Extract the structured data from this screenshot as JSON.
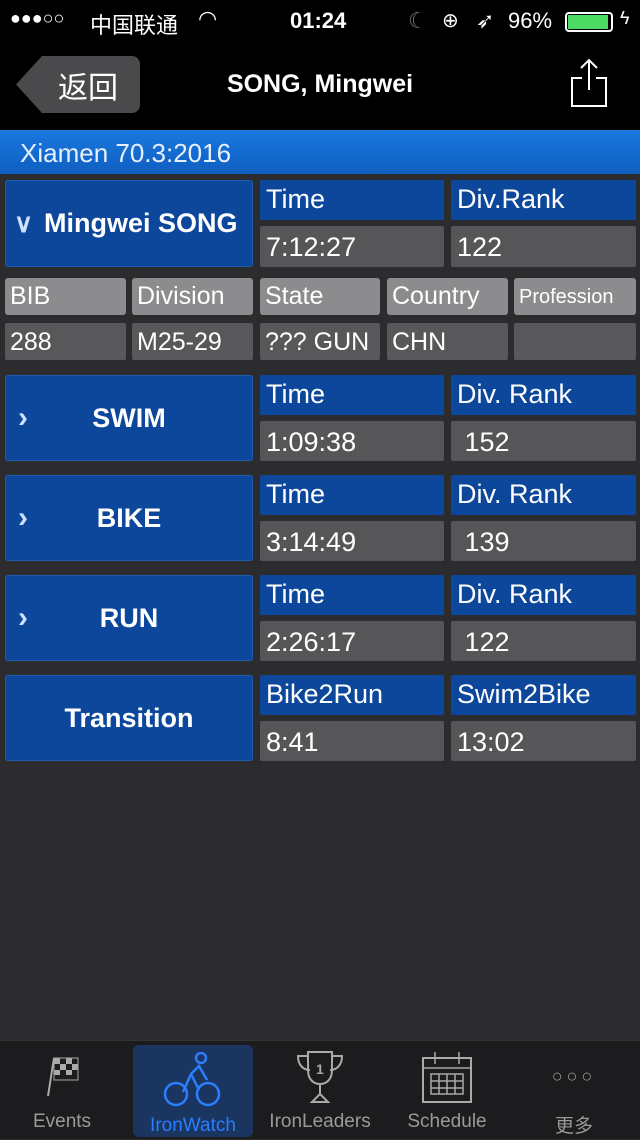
{
  "status": {
    "signal": "●●●○○",
    "carrier": "中国联通",
    "time": "01:24",
    "battery": "96%",
    "battery_level": 96
  },
  "nav": {
    "back": "返回",
    "title": "SONG, Mingwei",
    "share_icon": "share-icon"
  },
  "banner": "Xiamen 70.3:2016",
  "athlete": {
    "name": "Mingwei SONG",
    "time_label": "Time",
    "time": "7:12:27",
    "rank_label": "Div.Rank",
    "rank": "122"
  },
  "info": {
    "labels": [
      "BIB",
      "Division",
      "State",
      "Country",
      "Profession"
    ],
    "values": [
      "288",
      "M25-29",
      "??? GUN",
      "CHN",
      ""
    ]
  },
  "sections": [
    {
      "name": "SWIM",
      "l1": "Time",
      "v1": "1:09:38",
      "l2": "Div. Rank",
      "v2": " 152"
    },
    {
      "name": "BIKE",
      "l1": "Time",
      "v1": "3:14:49",
      "l2": "Div. Rank",
      "v2": " 139"
    },
    {
      "name": "RUN",
      "l1": "Time",
      "v1": "2:26:17",
      "l2": "Div. Rank",
      "v2": " 122"
    },
    {
      "name": "Transition",
      "l1": "Bike2Run",
      "v1": "8:41",
      "l2": "Swim2Bike",
      "v2": "13:02"
    }
  ],
  "tabs": [
    {
      "label": "Events"
    },
    {
      "label": "IronWatch",
      "active": true
    },
    {
      "label": "IronLeaders"
    },
    {
      "label": "Schedule"
    },
    {
      "label": "更多"
    }
  ],
  "colors": {
    "accent": "#2a7fff",
    "header_blue": "#0c479c",
    "banner": "#1670d6"
  }
}
